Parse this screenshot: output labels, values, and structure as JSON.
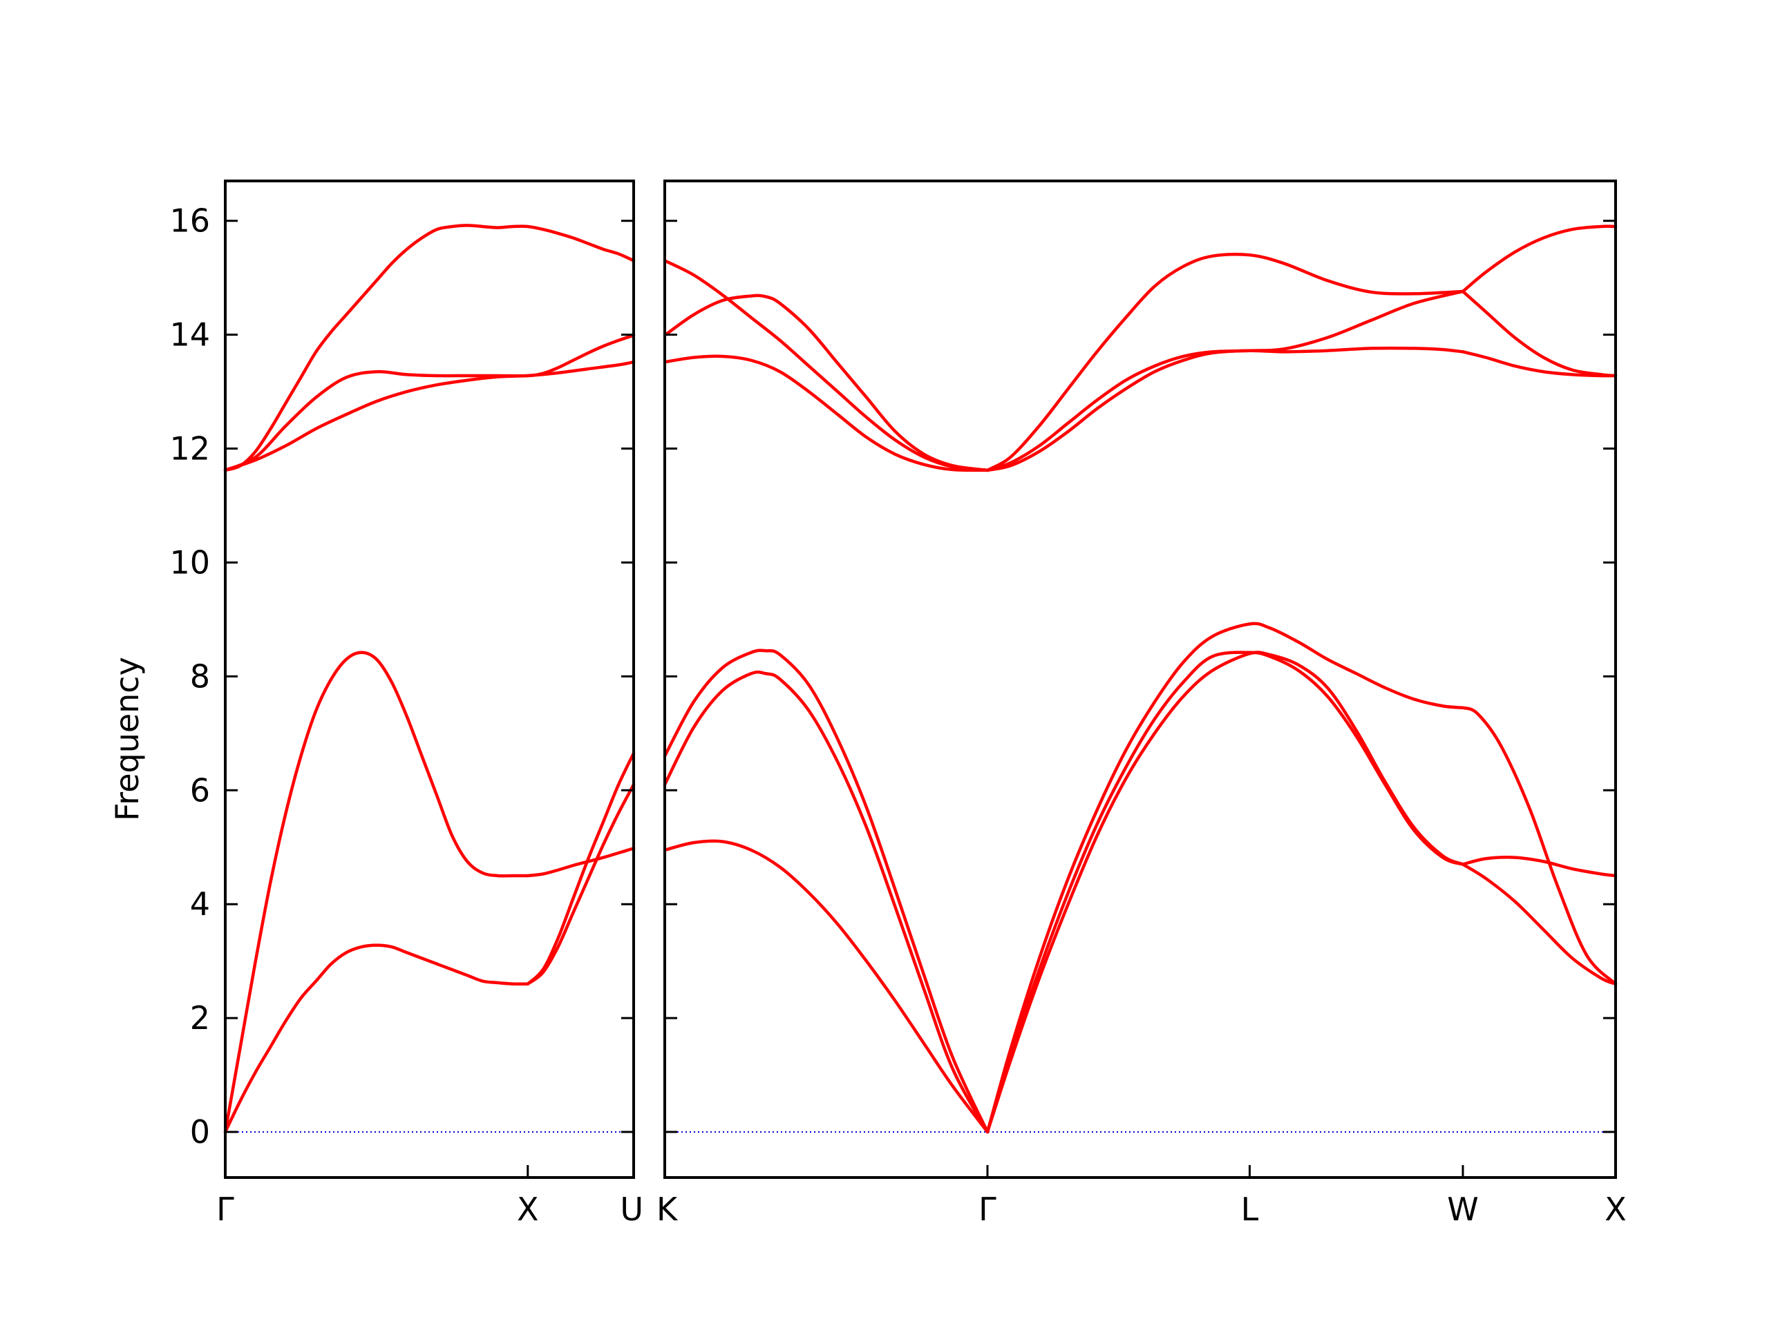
{
  "chart_data": {
    "type": "line",
    "title": "",
    "ylabel": "Frequency",
    "ylim": [
      -0.8,
      16.7
    ],
    "yticks": [
      0,
      2,
      4,
      6,
      8,
      10,
      12,
      14,
      16
    ],
    "grid": false,
    "legend": "none",
    "band_color": "#ff0000",
    "zero_line_color": "#0000cc",
    "panels": [
      {
        "name": "left-panel",
        "xlim": [
          0,
          1.35
        ],
        "xticks": [
          {
            "x": 0,
            "label": "Γ"
          },
          {
            "x": 1.0,
            "label": "X"
          },
          {
            "x": 1.35,
            "label": "U"
          }
        ],
        "series": [
          {
            "x": [
              0,
              0.05,
              0.1,
              0.15,
              0.2,
              0.25,
              0.3,
              0.35,
              0.4,
              0.45,
              0.5,
              0.55,
              0.6,
              0.65,
              0.7,
              0.75,
              0.8,
              0.85,
              0.9,
              0.95,
              1.0
            ],
            "y": [
              0,
              0.55,
              1.05,
              1.5,
              1.95,
              2.35,
              2.65,
              2.95,
              3.15,
              3.25,
              3.28,
              3.25,
              3.15,
              3.05,
              2.95,
              2.85,
              2.75,
              2.65,
              2.62,
              2.6,
              2.6
            ]
          },
          {
            "x": [
              0,
              0.05,
              0.1,
              0.15,
              0.2,
              0.25,
              0.3,
              0.35,
              0.4,
              0.45,
              0.5,
              0.55,
              0.6,
              0.65,
              0.7,
              0.75,
              0.8,
              0.85,
              0.9,
              0.95,
              1.0
            ],
            "y": [
              0,
              1.5,
              3.0,
              4.4,
              5.6,
              6.6,
              7.4,
              7.95,
              8.3,
              8.42,
              8.3,
              7.9,
              7.3,
              6.6,
              5.9,
              5.2,
              4.75,
              4.55,
              4.5,
              4.5,
              4.5
            ]
          },
          {
            "x": [
              1.0,
              1.05,
              1.1,
              1.15,
              1.2,
              1.25,
              1.3,
              1.35
            ],
            "y": [
              4.5,
              4.53,
              4.6,
              4.68,
              4.75,
              4.82,
              4.9,
              4.98
            ]
          },
          {
            "x": [
              1.0,
              1.05,
              1.1,
              1.15,
              1.2,
              1.25,
              1.3,
              1.35
            ],
            "y": [
              2.6,
              2.85,
              3.4,
              4.1,
              4.8,
              5.45,
              6.1,
              6.65
            ]
          },
          {
            "x": [
              1.0,
              1.05,
              1.1,
              1.15,
              1.2,
              1.25,
              1.3,
              1.35
            ],
            "y": [
              2.6,
              2.8,
              3.25,
              3.85,
              4.45,
              5.05,
              5.6,
              6.1
            ]
          },
          {
            "x": [
              0,
              0.1,
              0.2,
              0.3,
              0.4,
              0.5,
              0.6,
              0.7,
              0.8,
              0.9,
              1.0,
              1.1,
              1.2,
              1.3,
              1.35
            ],
            "y": [
              11.62,
              11.8,
              12.05,
              12.35,
              12.6,
              12.83,
              13.0,
              13.12,
              13.2,
              13.26,
              13.28,
              13.33,
              13.4,
              13.47,
              13.52
            ]
          },
          {
            "x": [
              0,
              0.1,
              0.2,
              0.3,
              0.4,
              0.5,
              0.6,
              0.7,
              0.8,
              0.9,
              1.0,
              1.05,
              1.1,
              1.15,
              1.2,
              1.25,
              1.3,
              1.35
            ],
            "y": [
              11.62,
              11.85,
              12.4,
              12.9,
              13.25,
              13.35,
              13.3,
              13.28,
              13.28,
              13.28,
              13.28,
              13.32,
              13.42,
              13.55,
              13.68,
              13.8,
              13.9,
              13.99
            ]
          },
          {
            "x": [
              0,
              0.05,
              0.1,
              0.15,
              0.2,
              0.25,
              0.3,
              0.35,
              0.4,
              0.45,
              0.5,
              0.55,
              0.6,
              0.65,
              0.7,
              0.75,
              0.8,
              0.85,
              0.9,
              0.95,
              1.0,
              1.05,
              1.1,
              1.15,
              1.2,
              1.25,
              1.3,
              1.35
            ],
            "y": [
              11.62,
              11.7,
              11.95,
              12.35,
              12.8,
              13.25,
              13.7,
              14.05,
              14.35,
              14.65,
              14.95,
              15.25,
              15.5,
              15.7,
              15.85,
              15.9,
              15.92,
              15.9,
              15.88,
              15.9,
              15.9,
              15.85,
              15.78,
              15.7,
              15.6,
              15.5,
              15.42,
              15.3
            ]
          }
        ]
      },
      {
        "name": "right-panel",
        "xlim": [
          0,
          3.3
        ],
        "xticks": [
          {
            "x": 0,
            "label": "K"
          },
          {
            "x": 1.12,
            "label": "Γ"
          },
          {
            "x": 2.03,
            "label": "L"
          },
          {
            "x": 2.77,
            "label": "W"
          },
          {
            "x": 3.3,
            "label": "X"
          }
        ],
        "series": [
          {
            "x": [
              0,
              0.1,
              0.2,
              0.3,
              0.4,
              0.5,
              0.6,
              0.7,
              0.8,
              0.9,
              1.0,
              1.12
            ],
            "y": [
              4.95,
              5.08,
              5.1,
              4.95,
              4.65,
              4.2,
              3.65,
              3.0,
              2.3,
              1.55,
              0.8,
              0
            ]
          },
          {
            "x": [
              0,
              0.1,
              0.2,
              0.3,
              0.35,
              0.4,
              0.5,
              0.6,
              0.7,
              0.8,
              0.9,
              1.0,
              1.12
            ],
            "y": [
              6.1,
              7.1,
              7.75,
              8.05,
              8.05,
              7.95,
              7.4,
              6.5,
              5.35,
              3.95,
              2.5,
              1.1,
              0
            ]
          },
          {
            "x": [
              0,
              0.1,
              0.2,
              0.3,
              0.35,
              0.4,
              0.5,
              0.6,
              0.7,
              0.8,
              0.9,
              1.0,
              1.12
            ],
            "y": [
              6.6,
              7.55,
              8.15,
              8.42,
              8.45,
              8.38,
              7.85,
              6.9,
              5.7,
              4.25,
              2.75,
              1.3,
              0
            ]
          },
          {
            "x": [
              1.12,
              1.2,
              1.3,
              1.4,
              1.5,
              1.6,
              1.7,
              1.8,
              1.9,
              2.03,
              2.1,
              2.2,
              2.3,
              2.4,
              2.5,
              2.6,
              2.7,
              2.77
            ],
            "y": [
              0,
              1.25,
              2.7,
              4.0,
              5.2,
              6.2,
              7.0,
              7.65,
              8.1,
              8.4,
              8.38,
              8.2,
              7.8,
              7.05,
              6.15,
              5.35,
              4.85,
              4.7
            ]
          },
          {
            "x": [
              1.12,
              1.2,
              1.3,
              1.4,
              1.5,
              1.6,
              1.7,
              1.8,
              1.9,
              2.03,
              2.1,
              2.2,
              2.3,
              2.4,
              2.5,
              2.6,
              2.7,
              2.77
            ],
            "y": [
              0,
              1.35,
              2.85,
              4.2,
              5.4,
              6.4,
              7.25,
              7.9,
              8.35,
              8.42,
              8.35,
              8.1,
              7.65,
              6.95,
              6.1,
              5.3,
              4.82,
              4.7
            ]
          },
          {
            "x": [
              1.12,
              1.2,
              1.3,
              1.4,
              1.5,
              1.6,
              1.7,
              1.8,
              1.9,
              2.03,
              2.1,
              2.2,
              2.3,
              2.4,
              2.5,
              2.6,
              2.7,
              2.77
            ],
            "y": [
              0,
              1.45,
              3.05,
              4.45,
              5.65,
              6.7,
              7.55,
              8.25,
              8.7,
              8.92,
              8.85,
              8.6,
              8.3,
              8.05,
              7.8,
              7.6,
              7.48,
              7.45
            ]
          },
          {
            "x": [
              2.77,
              2.82,
              2.9,
              3.0,
              3.1,
              3.2,
              3.3
            ],
            "y": [
              7.45,
              7.35,
              6.8,
              5.7,
              4.3,
              3.1,
              2.6
            ]
          },
          {
            "x": [
              2.77,
              2.85,
              2.95,
              3.05,
              3.15,
              3.25,
              3.3
            ],
            "y": [
              4.7,
              4.8,
              4.82,
              4.75,
              4.62,
              4.53,
              4.5
            ]
          },
          {
            "x": [
              2.77,
              2.85,
              2.95,
              3.05,
              3.15,
              3.25,
              3.3
            ],
            "y": [
              4.7,
              4.45,
              4.05,
              3.55,
              3.05,
              2.7,
              2.6
            ]
          },
          {
            "x": [
              0,
              0.1,
              0.2,
              0.3,
              0.4,
              0.5,
              0.6,
              0.7,
              0.8,
              0.9,
              1.0,
              1.12
            ],
            "y": [
              13.52,
              13.6,
              13.62,
              13.55,
              13.35,
              13.0,
              12.6,
              12.2,
              11.9,
              11.72,
              11.63,
              11.62
            ]
          },
          {
            "x": [
              0,
              0.1,
              0.2,
              0.3,
              0.4,
              0.5,
              0.6,
              0.7,
              0.8,
              0.9,
              1.0,
              1.12
            ],
            "y": [
              15.3,
              15.05,
              14.7,
              14.3,
              13.9,
              13.45,
              13.0,
              12.55,
              12.15,
              11.85,
              11.68,
              11.62
            ]
          },
          {
            "x": [
              0,
              0.1,
              0.2,
              0.3,
              0.35,
              0.4,
              0.5,
              0.6,
              0.7,
              0.8,
              0.9,
              1.0,
              1.12
            ],
            "y": [
              13.99,
              14.35,
              14.6,
              14.68,
              14.67,
              14.55,
              14.1,
              13.5,
              12.9,
              12.3,
              11.9,
              11.7,
              11.62
            ]
          },
          {
            "x": [
              1.12,
              1.2,
              1.3,
              1.4,
              1.5,
              1.6,
              1.7,
              1.8,
              1.9,
              2.03,
              2.15,
              2.3,
              2.45,
              2.6,
              2.77
            ],
            "y": [
              11.62,
              11.75,
              12.05,
              12.45,
              12.85,
              13.2,
              13.45,
              13.62,
              13.7,
              13.72,
              13.75,
              13.95,
              14.25,
              14.55,
              14.76
            ]
          },
          {
            "x": [
              1.12,
              1.2,
              1.3,
              1.4,
              1.5,
              1.6,
              1.7,
              1.8,
              1.9,
              2.03,
              2.15,
              2.3,
              2.45,
              2.6,
              2.7,
              2.77
            ],
            "y": [
              11.62,
              11.7,
              11.95,
              12.3,
              12.7,
              13.05,
              13.35,
              13.55,
              13.68,
              13.72,
              13.7,
              13.72,
              13.76,
              13.76,
              13.74,
              13.7
            ]
          },
          {
            "x": [
              1.12,
              1.2,
              1.3,
              1.4,
              1.5,
              1.6,
              1.7,
              1.8,
              1.9,
              2.03,
              2.15,
              2.3,
              2.45,
              2.6,
              2.77
            ],
            "y": [
              11.62,
              11.85,
              12.4,
              13.05,
              13.7,
              14.3,
              14.85,
              15.2,
              15.38,
              15.4,
              15.25,
              14.95,
              14.75,
              14.72,
              14.76
            ]
          },
          {
            "x": [
              2.77,
              2.85,
              2.95,
              3.05,
              3.15,
              3.25,
              3.3
            ],
            "y": [
              14.76,
              15.1,
              15.45,
              15.7,
              15.85,
              15.9,
              15.9
            ]
          },
          {
            "x": [
              2.77,
              2.85,
              2.95,
              3.05,
              3.15,
              3.25,
              3.3
            ],
            "y": [
              14.76,
              14.4,
              13.95,
              13.6,
              13.38,
              13.3,
              13.28
            ]
          },
          {
            "x": [
              2.77,
              2.85,
              2.95,
              3.05,
              3.15,
              3.25,
              3.3
            ],
            "y": [
              13.7,
              13.6,
              13.45,
              13.35,
              13.3,
              13.28,
              13.28
            ]
          }
        ]
      }
    ]
  }
}
